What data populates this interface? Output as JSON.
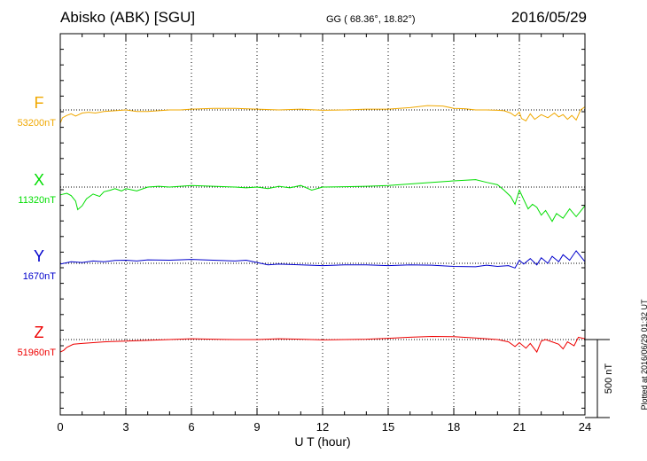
{
  "header": {
    "station": "Abisko (ABK)  [SGU]",
    "coords": "GG ( 68.36°,  18.82°)",
    "date": "2016/05/29"
  },
  "footer": {
    "plotted": "Plotted at 2016/06/29 01:32 UT"
  },
  "scale": {
    "label": "500 nT",
    "value": 500
  },
  "chart_data": {
    "type": "line",
    "title": "Abisko (ABK)  [SGU]",
    "xlabel": "U T (hour)",
    "ylabel": "",
    "xlim": [
      0,
      24
    ],
    "x_ticks": [
      0,
      3,
      6,
      9,
      12,
      15,
      18,
      21,
      24
    ],
    "x_tick_labels": [
      "0",
      "3",
      "6",
      "9",
      "12",
      "15",
      "18",
      "21",
      "24"
    ],
    "grid": true,
    "units": "nT",
    "scale_bar_nT": 500,
    "series": [
      {
        "name": "F",
        "baseline_label": "53200nT",
        "baseline": 53200,
        "color": "#f0a800",
        "x": [
          0,
          0.1,
          0.3,
          0.5,
          0.7,
          1,
          1.3,
          1.6,
          2,
          2.5,
          3,
          3.5,
          4,
          4.5,
          5,
          5.5,
          6,
          7,
          8,
          9,
          10,
          11,
          12,
          13,
          14,
          15,
          16,
          16.8,
          17.5,
          18,
          18.5,
          19,
          19.5,
          20,
          20.3,
          20.6,
          20.8,
          21,
          21.1,
          21.3,
          21.5,
          21.7,
          22,
          22.3,
          22.6,
          22.8,
          23,
          23.2,
          23.4,
          23.6,
          23.8,
          24
        ],
        "y": [
          53115,
          53150,
          53165,
          53175,
          53160,
          53180,
          53185,
          53180,
          53190,
          53195,
          53200,
          53190,
          53190,
          53195,
          53200,
          53200,
          53205,
          53210,
          53210,
          53205,
          53200,
          53205,
          53198,
          53200,
          53205,
          53205,
          53215,
          53228,
          53225,
          53210,
          53208,
          53200,
          53200,
          53198,
          53195,
          53180,
          53160,
          53185,
          53145,
          53130,
          53175,
          53140,
          53170,
          53150,
          53180,
          53155,
          53170,
          53140,
          53165,
          53135,
          53200,
          53220
        ]
      },
      {
        "name": "X",
        "baseline_label": "11320nT",
        "baseline": 11320,
        "color": "#00dd00",
        "x": [
          0,
          0.3,
          0.5,
          0.7,
          0.8,
          1,
          1.2,
          1.5,
          1.8,
          2,
          2.3,
          2.5,
          2.8,
          3,
          3.5,
          4,
          4.5,
          5,
          6,
          7,
          8,
          8.5,
          9,
          9.5,
          10,
          10.5,
          11,
          11.5,
          12,
          13,
          14,
          15,
          16,
          17,
          18,
          19,
          19.5,
          20,
          20.3,
          20.6,
          20.8,
          21,
          21.2,
          21.4,
          21.6,
          21.8,
          22,
          22.2,
          22.5,
          22.7,
          23,
          23.3,
          23.6,
          24
        ],
        "y": [
          11270,
          11280,
          11265,
          11230,
          11175,
          11200,
          11245,
          11275,
          11260,
          11290,
          11300,
          11310,
          11295,
          11310,
          11295,
          11320,
          11325,
          11320,
          11330,
          11325,
          11320,
          11315,
          11320,
          11310,
          11325,
          11315,
          11330,
          11300,
          11320,
          11322,
          11325,
          11330,
          11340,
          11350,
          11360,
          11368,
          11350,
          11335,
          11300,
          11260,
          11210,
          11300,
          11240,
          11180,
          11210,
          11190,
          11140,
          11170,
          11100,
          11150,
          11120,
          11180,
          11130,
          11200
        ]
      },
      {
        "name": "Y",
        "baseline_label": "1670nT",
        "baseline": 1670,
        "color": "#0000cc",
        "x": [
          0,
          0.5,
          1,
          1.5,
          2,
          2.5,
          3,
          3.5,
          4,
          5,
          6,
          7,
          8,
          8.5,
          9,
          9.5,
          10,
          11,
          12,
          13,
          14,
          15,
          16,
          17,
          18,
          19,
          19.5,
          20,
          20.5,
          20.8,
          21,
          21.2,
          21.5,
          21.8,
          22,
          22.3,
          22.5,
          22.8,
          23,
          23.3,
          23.6,
          24
        ],
        "y": [
          1665,
          1680,
          1675,
          1685,
          1680,
          1688,
          1690,
          1685,
          1692,
          1690,
          1695,
          1690,
          1685,
          1690,
          1675,
          1660,
          1665,
          1660,
          1655,
          1660,
          1660,
          1655,
          1660,
          1658,
          1650,
          1648,
          1658,
          1650,
          1655,
          1640,
          1690,
          1665,
          1700,
          1660,
          1705,
          1670,
          1715,
          1680,
          1725,
          1690,
          1750,
          1680
        ]
      },
      {
        "name": "Z",
        "baseline_label": "51960nT",
        "baseline": 51960,
        "color": "#ee0000",
        "x": [
          0,
          0.15,
          0.3,
          0.6,
          1,
          1.5,
          2,
          2.5,
          3,
          4,
          5,
          6,
          7,
          8,
          9,
          10,
          11,
          12,
          13,
          14,
          15,
          16,
          17,
          18,
          19,
          19.5,
          20,
          20.5,
          20.8,
          21,
          21.3,
          21.5,
          21.8,
          22,
          22.2,
          22.5,
          22.8,
          23,
          23.2,
          23.5,
          23.7,
          24
        ],
        "y": [
          51880,
          51890,
          51910,
          51930,
          51935,
          51940,
          51945,
          51948,
          51950,
          51955,
          51960,
          51965,
          51962,
          51960,
          51960,
          51965,
          51962,
          51958,
          51960,
          51962,
          51968,
          51975,
          51980,
          51978,
          51970,
          51965,
          51960,
          51945,
          51915,
          51940,
          51905,
          51935,
          51880,
          51950,
          51960,
          51945,
          51930,
          51900,
          51945,
          51920,
          51975,
          51965
        ]
      }
    ]
  }
}
